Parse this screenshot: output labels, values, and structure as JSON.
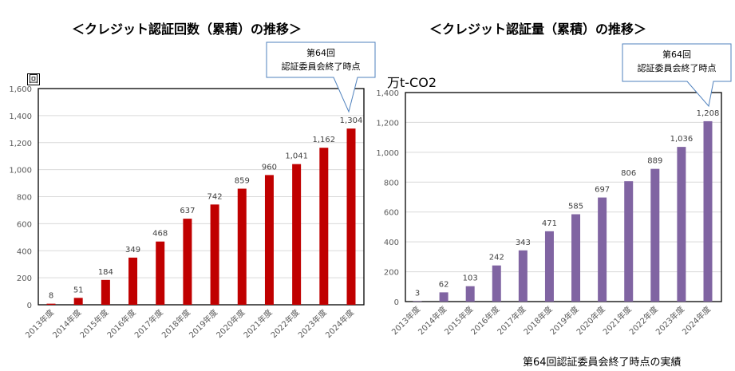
{
  "footnote": "第64回認証委員会終了時点の実績",
  "colors": {
    "left_bar": "#c00000",
    "right_bar": "#8064a2",
    "callout_border": "#4f81bd"
  },
  "chart_data": [
    {
      "type": "bar",
      "title": "＜クレジット認証回数（累積）の推移＞",
      "ylabel": "回",
      "ylim": [
        0,
        1600
      ],
      "yticks": [
        0,
        200,
        400,
        600,
        800,
        1000,
        1200,
        1400,
        1600
      ],
      "ytick_labels": [
        "0",
        "200",
        "400",
        "600",
        "800",
        "1,000",
        "1,200",
        "1,400",
        "1,600"
      ],
      "categories": [
        "2013年度",
        "2014年度",
        "2015年度",
        "2016年度",
        "2017年度",
        "2018年度",
        "2019年度",
        "2020年度",
        "2021年度",
        "2022年度",
        "2023年度",
        "2024年度"
      ],
      "values": [
        8,
        51,
        184,
        349,
        468,
        637,
        742,
        859,
        960,
        1041,
        1162,
        1304
      ],
      "value_labels": [
        "8",
        "51",
        "184",
        "349",
        "468",
        "637",
        "742",
        "859",
        "960",
        "1,041",
        "1,162",
        "1,304"
      ],
      "grid": true,
      "annotation": [
        "第64回",
        "認証委員会終了時点"
      ]
    },
    {
      "type": "bar",
      "title": "＜クレジット認証量（累積）の推移＞",
      "ylabel": "万t-CO2",
      "ylim": [
        0,
        1400
      ],
      "yticks": [
        0,
        200,
        400,
        600,
        800,
        1000,
        1200,
        1400
      ],
      "ytick_labels": [
        "0",
        "200",
        "400",
        "600",
        "800",
        "1,000",
        "1,200",
        "1,400"
      ],
      "categories": [
        "2013年度",
        "2014年度",
        "2015年度",
        "2016年度",
        "2017年度",
        "2018年度",
        "2019年度",
        "2020年度",
        "2021年度",
        "2022年度",
        "2023年度",
        "2024年度"
      ],
      "values": [
        3,
        62,
        103,
        242,
        343,
        471,
        585,
        697,
        806,
        889,
        1036,
        1208
      ],
      "value_labels": [
        "3",
        "62",
        "103",
        "242",
        "343",
        "471",
        "585",
        "697",
        "806",
        "889",
        "1,036",
        "1,208"
      ],
      "grid": true,
      "annotation": [
        "第64回",
        "認証委員会終了時点"
      ]
    }
  ]
}
